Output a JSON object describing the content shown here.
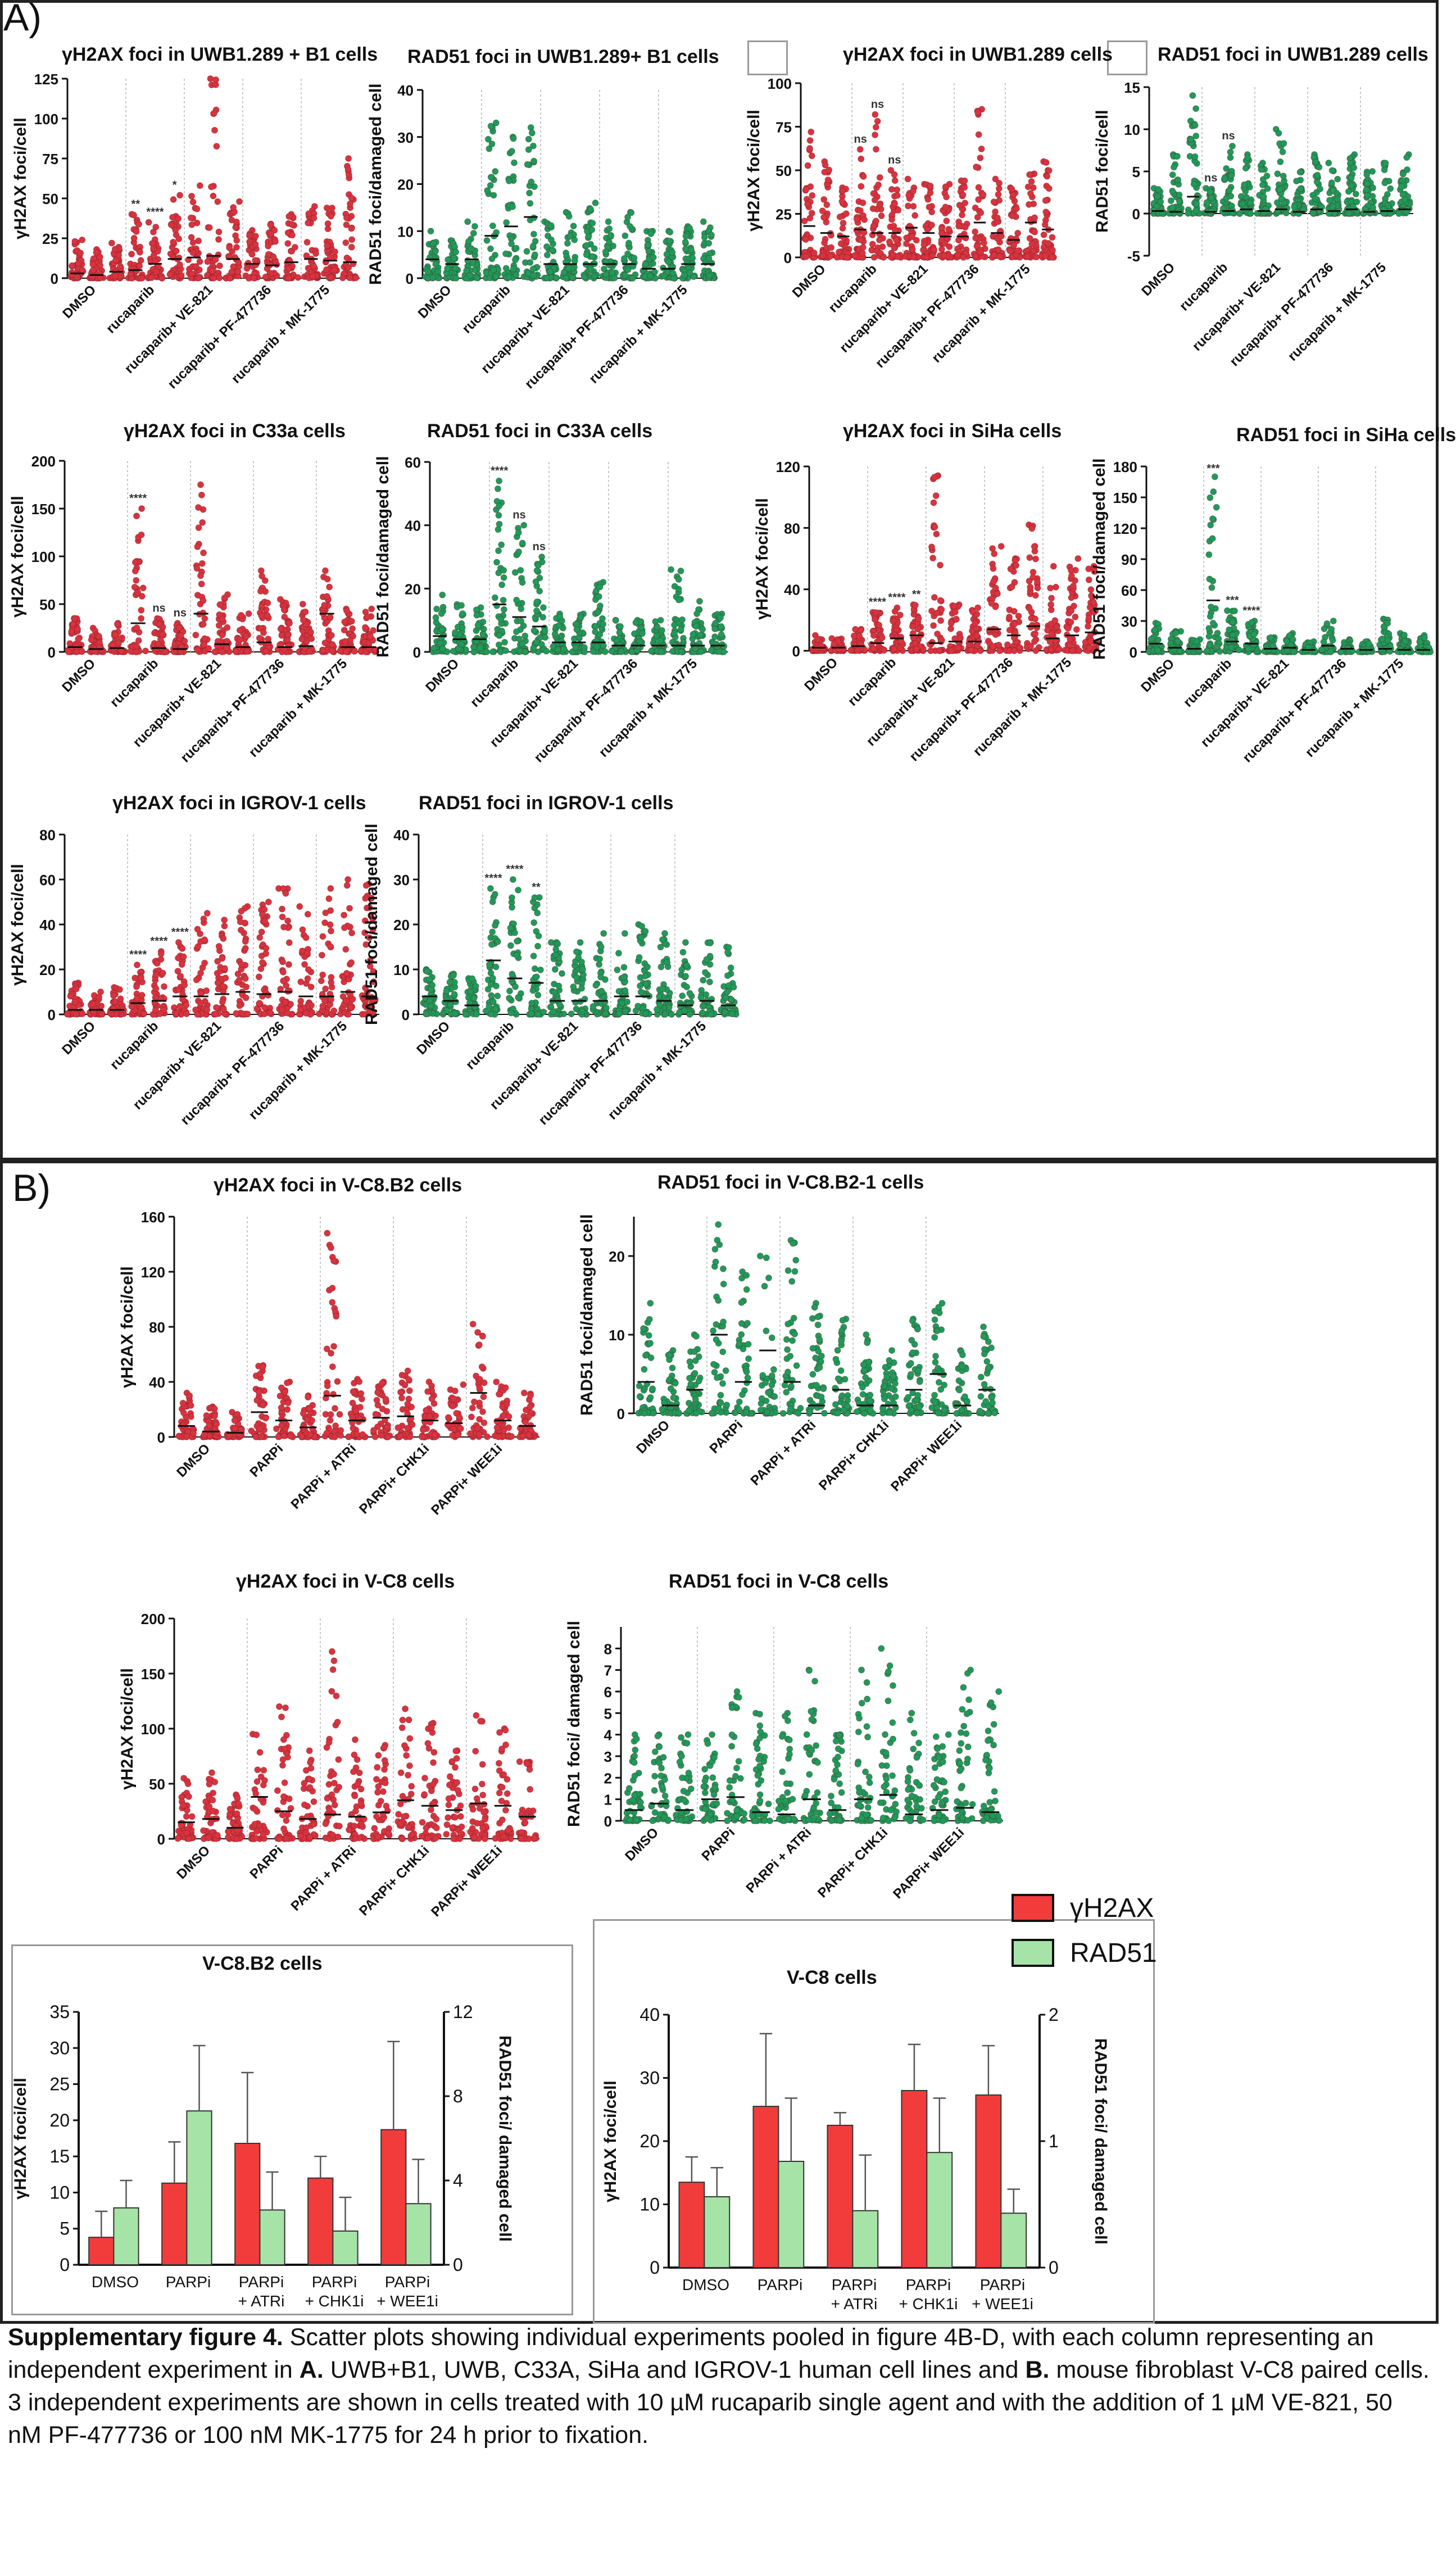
{
  "panels": [
    {
      "letter": "A)"
    },
    {
      "letter": "B)"
    }
  ],
  "legend": {
    "items": [
      {
        "label": "γH2AX",
        "color": "#f23c3c"
      },
      {
        "label": "RAD51",
        "color": "#a6e3a6"
      }
    ]
  },
  "caption": {
    "bold_lead": "Supplementary figure 4.",
    "text1": " Scatter plots showing individual experiments pooled in figure 4B-D, with each column representing an independent experiment in ",
    "bold_a": "A.",
    "text2": " UWB+B1, UWB, C33A, SiHa and IGROV-1 human cell lines and ",
    "bold_b": "B.",
    "text3": " mouse fibroblast V-C8 paired cells. 3 independent experiments are shown in cells treated with 10 µM rucaparib single agent and with the addition of 1 µM VE-821, 50 nM PF-477736 or 100 nM MK-1775 for 24 h prior to fixation."
  },
  "chart_data": [
    {
      "type": "scatter",
      "title": "γH2AX foci in UWB1.289 + B1 cells",
      "ylabel": "γH2AX foci/cell",
      "color": "#d9333f",
      "ylim": [
        0,
        125
      ],
      "yticks": [
        0,
        25,
        50,
        75,
        100,
        125
      ],
      "groups": [
        "DMSO",
        "rucaparib",
        "rucaparib+ VE-821",
        "rucaparib+ PF-477736",
        "rucaparib + MK-1775"
      ],
      "column_means": [
        3,
        2,
        4,
        5,
        9,
        12,
        13,
        14,
        12,
        9,
        8,
        10,
        12,
        11,
        10
      ],
      "column_max": [
        24,
        18,
        22,
        40,
        35,
        52,
        58,
        125,
        48,
        30,
        34,
        40,
        45,
        44,
        75
      ],
      "annotations": [
        "**",
        "****",
        "*"
      ]
    },
    {
      "type": "scatter",
      "title": "RAD51 foci in UWB1.289+ B1 cells",
      "ylabel": "RAD51 foci/damaged cell",
      "color": "#1f9a5a",
      "ylim": [
        0,
        40
      ],
      "yticks": [
        0,
        10,
        20,
        30,
        40
      ],
      "groups": [
        "DMSO",
        "rucaparib",
        "rucaparib+ VE-821",
        "rucaparib+ PF-477736",
        "rucaparib + MK-1775"
      ],
      "column_means": [
        4,
        3,
        4,
        9,
        11,
        13,
        3,
        3,
        3,
        3,
        3,
        2,
        2,
        3,
        3
      ],
      "column_max": [
        10,
        8,
        12,
        33,
        30,
        32,
        12,
        14,
        16,
        12,
        14,
        10,
        10,
        11,
        12
      ],
      "annotations": []
    },
    {
      "type": "scatter",
      "title": "γH2AX foci in UWB1.289 cells",
      "ylabel": "γH2AX foci/cell",
      "color": "#d9333f",
      "ylim": [
        0,
        100
      ],
      "yticks": [
        0,
        25,
        50,
        75,
        100
      ],
      "groups": [
        "DMSO",
        "rucaparib",
        "rucaparib+ VE-821",
        "rucaparib+ PF-477736",
        "rucaparib + MK-1775"
      ],
      "column_means": [
        18,
        14,
        12,
        16,
        14,
        14,
        17,
        14,
        12,
        12,
        20,
        14,
        10,
        20,
        16
      ],
      "column_max": [
        72,
        55,
        40,
        62,
        82,
        50,
        45,
        42,
        42,
        44,
        85,
        45,
        40,
        48,
        55
      ],
      "annotations": [
        "ns",
        "ns",
        "ns"
      ]
    },
    {
      "type": "scatter",
      "title": "RAD51 foci in UWB1.289 cells",
      "ylabel": "RAD51 foci/cell",
      "color": "#1f9a5a",
      "ylim": [
        -5,
        15
      ],
      "yticks": [
        -5,
        0,
        5,
        10,
        15
      ],
      "groups": [
        "DMSO",
        "rucaparib",
        "rucaparib+ VE-821",
        "rucaparib+ PF-477736",
        "rucaparib + MK-1775"
      ],
      "column_means": [
        0.3,
        0.2,
        2,
        0.2,
        0.3,
        0.5,
        0.3,
        0.5,
        0.2,
        0.5,
        0.3,
        0.5,
        0.2,
        0.3,
        0.5
      ],
      "column_max": [
        3,
        7,
        14,
        3,
        8,
        7,
        6,
        10,
        5,
        7,
        6,
        7,
        5,
        6,
        7
      ],
      "annotations": [
        "ns",
        "ns"
      ]
    },
    {
      "type": "scatter",
      "title": "γH2AX foci in C33a cells",
      "ylabel": "γH2AX foci/cell",
      "color": "#d9333f",
      "ylim": [
        0,
        200
      ],
      "yticks": [
        0,
        50,
        100,
        150,
        200
      ],
      "groups": [
        "DMSO",
        "rucaparib",
        "rucaparib+ VE-821",
        "rucaparib+ PF-477736",
        "rucaparib + MK-1775"
      ],
      "column_means": [
        5,
        3,
        4,
        30,
        4,
        3,
        40,
        8,
        5,
        10,
        5,
        6,
        40,
        5,
        5
      ],
      "column_max": [
        35,
        25,
        30,
        150,
        35,
        30,
        175,
        60,
        40,
        85,
        55,
        50,
        85,
        45,
        45
      ],
      "annotations": [
        "****",
        "ns",
        "ns"
      ]
    },
    {
      "type": "scatter",
      "title": "RAD51 foci in C33A cells",
      "ylabel": "RAD51 foci/damaged cell",
      "color": "#1f9a5a",
      "ylim": [
        0,
        60
      ],
      "yticks": [
        0,
        20,
        40,
        60
      ],
      "groups": [
        "DMSO",
        "rucaparib",
        "rucaparib+ VE-821",
        "rucaparib+ PF-477736",
        "rucaparib + MK-1775"
      ],
      "column_means": [
        5,
        4,
        4,
        15,
        11,
        8,
        3,
        3,
        3,
        2,
        2,
        2,
        2,
        2,
        2
      ],
      "column_max": [
        18,
        15,
        14,
        54,
        40,
        30,
        12,
        12,
        22,
        10,
        10,
        10,
        26,
        16,
        12
      ],
      "annotations": [
        "****",
        "ns",
        "ns"
      ]
    },
    {
      "type": "scatter",
      "title": "γH2AX foci in SiHa cells",
      "ylabel": "γH2AX foci/cell",
      "color": "#d9333f",
      "ylim": [
        0,
        120
      ],
      "yticks": [
        0,
        40,
        80,
        120
      ],
      "groups": [
        "DMSO",
        "rucaparib",
        "rucaparib+ VE-821",
        "rucaparib+ PF-477736",
        "rucaparib + MK-1775"
      ],
      "column_means": [
        2,
        2,
        3,
        5,
        8,
        10,
        5,
        6,
        6,
        14,
        10,
        16,
        8,
        10,
        12
      ],
      "column_max": [
        10,
        8,
        14,
        25,
        28,
        30,
        114,
        30,
        28,
        68,
        60,
        82,
        55,
        60,
        55
      ],
      "annotations": [
        "****",
        "****",
        "**"
      ]
    },
    {
      "type": "scatter",
      "title": "RAD51 foci in SiHa cells",
      "ylabel": "RAD51 foci/damaged cell",
      "color": "#1f9a5a",
      "ylim": [
        0,
        180
      ],
      "yticks": [
        0,
        30,
        60,
        90,
        120,
        150,
        180
      ],
      "groups": [
        "DMSO",
        "rucaparib",
        "rucaparib+ VE-821",
        "rucaparib+ PF-477736",
        "rucaparib + MK-1775"
      ],
      "column_means": [
        8,
        4,
        3,
        50,
        10,
        8,
        3,
        4,
        2,
        6,
        3,
        2,
        3,
        2,
        2
      ],
      "column_max": [
        28,
        20,
        12,
        170,
        40,
        30,
        14,
        18,
        10,
        30,
        12,
        10,
        32,
        18,
        16
      ],
      "annotations": [
        "***",
        "***",
        "****"
      ]
    },
    {
      "type": "scatter",
      "title": "γH2AX foci in IGROV-1 cells",
      "ylabel": "γH2AX foci/cell",
      "color": "#d9333f",
      "ylim": [
        0,
        80
      ],
      "yticks": [
        0,
        20,
        40,
        60,
        80
      ],
      "groups": [
        "DMSO",
        "rucaparib",
        "rucaparib+ VE-821",
        "rucaparib+ PF-477736",
        "rucaparib + MK-1775"
      ],
      "column_means": [
        2,
        2,
        2,
        5,
        6,
        8,
        8,
        9,
        10,
        9,
        10,
        8,
        8,
        10,
        8
      ],
      "column_max": [
        14,
        10,
        12,
        22,
        28,
        32,
        45,
        42,
        48,
        50,
        56,
        48,
        56,
        60,
        58
      ],
      "annotations": [
        "****",
        "****",
        "****"
      ]
    },
    {
      "type": "scatter",
      "title": "RAD51 foci in IGROV-1 cells",
      "ylabel": "RAD51 foci/damaged cell",
      "color": "#1f9a5a",
      "ylim": [
        0,
        40
      ],
      "yticks": [
        0,
        10,
        20,
        30,
        40
      ],
      "groups": [
        "DMSO",
        "rucaparib",
        "rucaparib+ VE-821",
        "rucaparib+ PF-477736",
        "rucaparib + MK-1775"
      ],
      "column_means": [
        4,
        3,
        2,
        12,
        8,
        7,
        3,
        3,
        3,
        4,
        4,
        3,
        2,
        3,
        2
      ],
      "column_max": [
        10,
        9,
        8,
        28,
        30,
        26,
        16,
        16,
        18,
        18,
        20,
        18,
        16,
        16,
        15
      ],
      "annotations": [
        "****",
        "****",
        "**"
      ]
    },
    {
      "type": "scatter",
      "title": "γH2AX foci in V-C8.B2 cells",
      "ylabel": "γH2AX foci/cell",
      "color": "#d9333f",
      "ylim": [
        0,
        160
      ],
      "yticks": [
        0,
        40,
        80,
        120,
        160
      ],
      "groups": [
        "DMSO",
        "PARPi",
        "PARPi + ATRi",
        "PARPi+ CHK1i",
        "PARPi+ WEE1i"
      ],
      "column_means": [
        8,
        4,
        3,
        18,
        12,
        7,
        30,
        12,
        14,
        15,
        12,
        10,
        32,
        12,
        8
      ],
      "column_max": [
        32,
        22,
        18,
        52,
        40,
        30,
        148,
        42,
        40,
        48,
        40,
        38,
        82,
        40,
        32
      ],
      "annotations": []
    },
    {
      "type": "scatter",
      "title": "RAD51 foci in V-C8.B2-1 cells",
      "ylabel": "RAD51 foci/damaged cell",
      "color": "#1f9a5a",
      "ylim": [
        0,
        25
      ],
      "yticks": [
        0,
        10,
        20
      ],
      "groups": [
        "DMSO",
        "PARPi",
        "PARPi + ATRi",
        "PARPi+ CHK1i",
        "PARPi+ WEE1i"
      ],
      "column_means": [
        4,
        1,
        3,
        10,
        4,
        8,
        4,
        1,
        3,
        1,
        1,
        3,
        5,
        1,
        3
      ],
      "column_max": [
        14,
        8,
        10,
        24,
        18,
        20,
        22,
        14,
        12,
        10,
        8,
        12,
        14,
        8,
        11
      ],
      "annotations": []
    },
    {
      "type": "scatter",
      "title": "γH2AX foci in V-C8 cells",
      "ylabel": "γH2AX foci/cell",
      "color": "#d9333f",
      "ylim": [
        0,
        200
      ],
      "yticks": [
        0,
        50,
        100,
        150,
        200
      ],
      "groups": [
        "DMSO",
        "PARPi",
        "PARPi + ATRi",
        "PARPi+ CHK1i",
        "PARPi+ WEE1i"
      ],
      "column_means": [
        15,
        18,
        10,
        38,
        25,
        18,
        22,
        20,
        24,
        35,
        30,
        26,
        32,
        30,
        20
      ],
      "column_max": [
        55,
        60,
        40,
        95,
        120,
        80,
        170,
        90,
        85,
        118,
        105,
        80,
        112,
        100,
        70
      ],
      "annotations": []
    },
    {
      "type": "scatter",
      "title": "RAD51 foci in V-C8 cells",
      "ylabel": "RAD51 foci/ damaged cell",
      "color": "#1f9a5a",
      "ylim": [
        0,
        9
      ],
      "yticks": [
        0,
        1,
        2,
        3,
        4,
        5,
        6,
        7,
        8
      ],
      "groups": [
        "DMSO",
        "PARPi",
        "PARPi + ATRi",
        "PARPi+ CHK1i",
        "PARPi+ WEE1i"
      ],
      "column_means": [
        0.5,
        0.8,
        0.5,
        1.0,
        1.1,
        0.4,
        0.3,
        1.0,
        0.5,
        1.0,
        1.2,
        0.3,
        0.5,
        0.6,
        0.4
      ],
      "column_max": [
        4,
        4,
        4,
        4,
        6,
        5,
        5,
        7,
        4,
        7,
        8,
        5,
        4,
        7,
        6
      ],
      "annotations": []
    },
    {
      "type": "bar",
      "title": "V-C8.B2 cells",
      "categories": [
        [
          "DMSO"
        ],
        [
          "PARPi"
        ],
        [
          "PARPi",
          "+ ATRi"
        ],
        [
          "PARPi",
          "+ CHK1i"
        ],
        [
          "PARPi",
          "+ WEE1i"
        ]
      ],
      "ylabel": "γH2AX foci/cell",
      "y2label": "RAD51 foci/ damaged cell",
      "ylim": [
        0,
        35
      ],
      "yticks": [
        0,
        5,
        10,
        15,
        20,
        25,
        30,
        35
      ],
      "y2lim": [
        0,
        12
      ],
      "y2ticks": [
        0,
        4,
        8,
        12
      ],
      "series": [
        {
          "name": "γH2AX",
          "axis": "left",
          "values": [
            3.8,
            11.3,
            16.8,
            12,
            18.7
          ],
          "errors": [
            3.6,
            5.7,
            9.8,
            3,
            12.2
          ],
          "color": "#f23c3c"
        },
        {
          "name": "RAD51",
          "axis": "right",
          "values": [
            2.7,
            7.3,
            2.6,
            1.6,
            2.9
          ],
          "errors": [
            1.3,
            3.1,
            1.8,
            1.6,
            2.1
          ],
          "color": "#a6e3a6"
        }
      ]
    },
    {
      "type": "bar",
      "title": "V-C8 cells",
      "categories": [
        [
          "DMSO"
        ],
        [
          "PARPi"
        ],
        [
          "PARPi",
          "+ ATRi"
        ],
        [
          "PARPi",
          "+ CHK1i"
        ],
        [
          "PARPi",
          "+ WEE1i"
        ]
      ],
      "ylabel": "γH2AX foci/cell",
      "y2label": "RAD51 foci/ damaged cell",
      "ylim": [
        0,
        40
      ],
      "yticks": [
        0,
        10,
        20,
        30,
        40
      ],
      "y2lim": [
        0,
        2
      ],
      "y2ticks": [
        0,
        1,
        2
      ],
      "series": [
        {
          "name": "γH2AX",
          "axis": "left",
          "values": [
            13.5,
            25.5,
            22.5,
            28,
            27.3
          ],
          "errors": [
            4,
            11.5,
            2,
            7.3,
            7.8
          ],
          "color": "#f23c3c"
        },
        {
          "name": "RAD51",
          "axis": "right",
          "values": [
            0.56,
            0.84,
            0.45,
            0.91,
            0.43
          ],
          "errors": [
            0.23,
            0.5,
            0.44,
            0.43,
            0.19
          ],
          "color": "#a6e3a6"
        }
      ]
    }
  ]
}
